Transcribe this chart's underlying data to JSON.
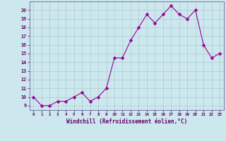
{
  "x": [
    0,
    1,
    2,
    3,
    4,
    5,
    6,
    7,
    8,
    9,
    10,
    11,
    12,
    13,
    14,
    15,
    16,
    17,
    18,
    19,
    20,
    21,
    22,
    23
  ],
  "y": [
    10,
    9,
    9,
    9.5,
    9.5,
    10,
    10.5,
    9.5,
    10,
    11,
    14.5,
    14.5,
    16.5,
    18,
    19.5,
    18.5,
    19.5,
    20.5,
    19.5,
    19,
    20,
    16,
    14.5,
    15
  ],
  "xlabel": "Windchill (Refroidissement éolien,°C)",
  "ylim_min": 8.5,
  "ylim_max": 21.0,
  "xlim_min": -0.5,
  "xlim_max": 23.5,
  "yticks": [
    9,
    10,
    11,
    12,
    13,
    14,
    15,
    16,
    17,
    18,
    19,
    20
  ],
  "xticks": [
    0,
    1,
    2,
    3,
    4,
    5,
    6,
    7,
    8,
    9,
    10,
    11,
    12,
    13,
    14,
    15,
    16,
    17,
    18,
    19,
    20,
    21,
    22,
    23
  ],
  "line_color": "#990099",
  "marker": "D",
  "marker_size": 2.5,
  "bg_color": "#cce8ee",
  "grid_color": "#aacccc",
  "tick_label_color": "#660066",
  "xlabel_color": "#660066",
  "spine_color": "#666699"
}
